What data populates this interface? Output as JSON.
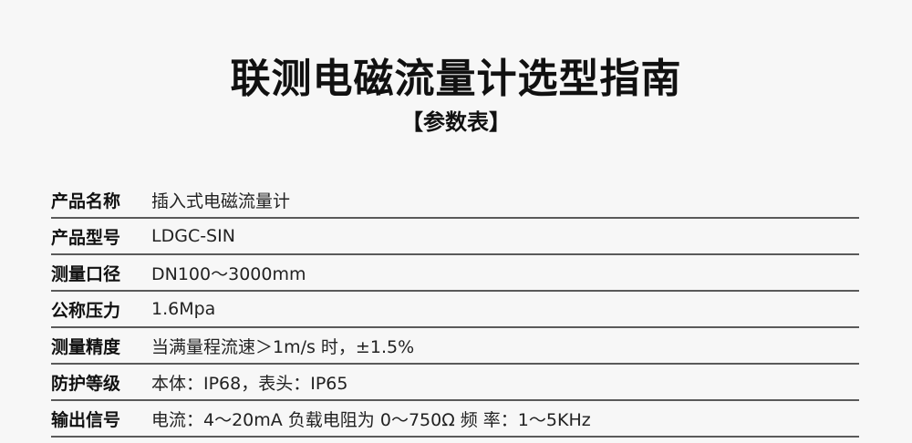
{
  "header": {
    "title": "联测电磁流量计选型指南",
    "subtitle": "【参数表】"
  },
  "rows": [
    {
      "label": "产品名称",
      "value": "插入式电磁流量计"
    },
    {
      "label": "产品型号",
      "value": "LDGC-SIN"
    },
    {
      "label": "测量口径",
      "value": "DN100～3000mm"
    },
    {
      "label": "公称压力",
      "value": "1.6Mpa"
    },
    {
      "label": "测量精度",
      "value": "当满量程流速＞1m/s 时，±1.5%"
    },
    {
      "label": "防护等级",
      "value": "本体：IP68，表头：IP65"
    },
    {
      "label": "输出信号",
      "value": "电流：4～20mA 负载电阻为 0～750Ω 频 率：1～5KHz"
    }
  ]
}
